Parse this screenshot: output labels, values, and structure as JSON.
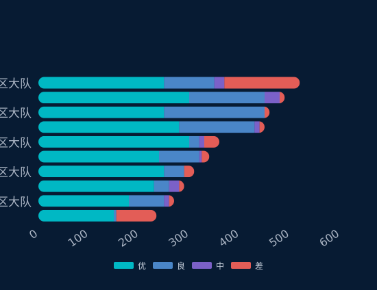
{
  "chart_data": {
    "type": "bar",
    "orientation": "horizontal",
    "stacked": true,
    "categories": [
      "区大队",
      "",
      "区大队",
      "",
      "区大队",
      "",
      "区大队",
      "",
      "区大队",
      ""
    ],
    "series": [
      {
        "name": "优",
        "color": "#00b8c4",
        "values": [
          250,
          300,
          250,
          280,
          300,
          240,
          250,
          230,
          180,
          150
        ]
      },
      {
        "name": "良",
        "color": "#4a86c8",
        "values": [
          100,
          150,
          200,
          150,
          20,
          80,
          40,
          30,
          70,
          5
        ]
      },
      {
        "name": "中",
        "color": "#7b61c8",
        "values": [
          20,
          30,
          0,
          10,
          10,
          5,
          0,
          20,
          10,
          0
        ]
      },
      {
        "name": "差",
        "color": "#e35d57",
        "values": [
          150,
          10,
          10,
          10,
          30,
          15,
          20,
          10,
          10,
          80
        ]
      }
    ],
    "xlim": [
      0,
      600
    ],
    "x_ticks": [
      "0",
      "100",
      "200",
      "300",
      "400",
      "500",
      "600"
    ],
    "grid": false,
    "legend_position": "bottom-center",
    "bar_ends": "rounded"
  }
}
